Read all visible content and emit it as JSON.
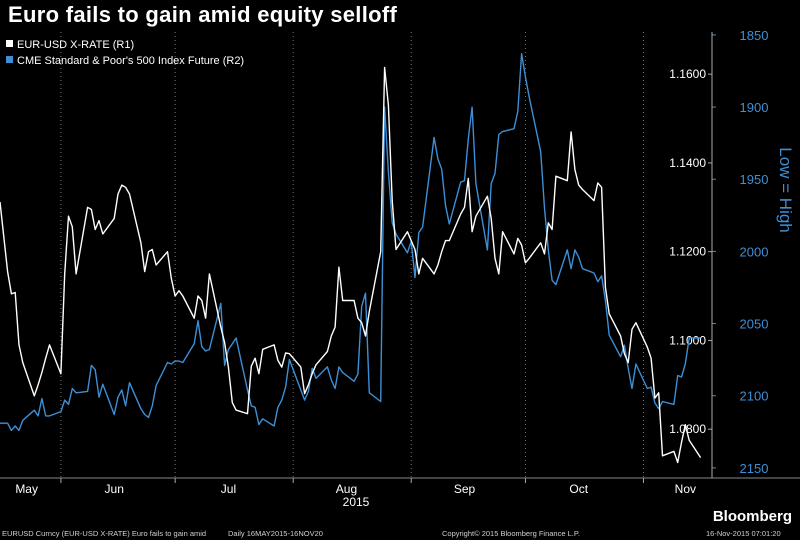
{
  "title": "Euro fails to gain amid equity selloff",
  "brand": "Bloomberg",
  "footer": {
    "left": "EURUSD Curncy (EUR-USD X-RATE) Euro fails to gain amid",
    "range": "Daily 16MAY2015-16NOV20",
    "copyright": "Copyright© 2015 Bloomberg Finance L.P.",
    "timestamp": "16-Nov-2015 07:01:20"
  },
  "colors": {
    "eurusd": "#ffffff",
    "spx": "#3d8fd6",
    "background": "#000000"
  },
  "chart_data": {
    "type": "line",
    "title": "Euro fails to gain amid equity selloff",
    "x": [
      "2015-05-16",
      "2015-05-18",
      "2015-05-19",
      "2015-05-20",
      "2015-05-21",
      "2015-05-22",
      "2015-05-25",
      "2015-05-26",
      "2015-05-27",
      "2015-05-28",
      "2015-05-29",
      "2015-06-01",
      "2015-06-02",
      "2015-06-03",
      "2015-06-04",
      "2015-06-05",
      "2015-06-08",
      "2015-06-09",
      "2015-06-10",
      "2015-06-11",
      "2015-06-12",
      "2015-06-15",
      "2015-06-16",
      "2015-06-17",
      "2015-06-18",
      "2015-06-19",
      "2015-06-22",
      "2015-06-23",
      "2015-06-24",
      "2015-06-25",
      "2015-06-26",
      "2015-06-29",
      "2015-06-30",
      "2015-07-01",
      "2015-07-02",
      "2015-07-03",
      "2015-07-06",
      "2015-07-07",
      "2015-07-08",
      "2015-07-09",
      "2015-07-10",
      "2015-07-13",
      "2015-07-14",
      "2015-07-15",
      "2015-07-16",
      "2015-07-17",
      "2015-07-20",
      "2015-07-21",
      "2015-07-22",
      "2015-07-23",
      "2015-07-24",
      "2015-07-27",
      "2015-07-28",
      "2015-07-29",
      "2015-07-30",
      "2015-07-31",
      "2015-08-03",
      "2015-08-04",
      "2015-08-05",
      "2015-08-06",
      "2015-08-07",
      "2015-08-10",
      "2015-08-11",
      "2015-08-12",
      "2015-08-13",
      "2015-08-14",
      "2015-08-17",
      "2015-08-18",
      "2015-08-19",
      "2015-08-20",
      "2015-08-21",
      "2015-08-24",
      "2015-08-25",
      "2015-08-26",
      "2015-08-27",
      "2015-08-28",
      "2015-08-31",
      "2015-09-01",
      "2015-09-02",
      "2015-09-03",
      "2015-09-04",
      "2015-09-07",
      "2015-09-08",
      "2015-09-09",
      "2015-09-10",
      "2015-09-11",
      "2015-09-14",
      "2015-09-15",
      "2015-09-16",
      "2015-09-17",
      "2015-09-18",
      "2015-09-21",
      "2015-09-22",
      "2015-09-23",
      "2015-09-24",
      "2015-09-25",
      "2015-09-28",
      "2015-09-29",
      "2015-09-30",
      "2015-10-01",
      "2015-10-02",
      "2015-10-05",
      "2015-10-06",
      "2015-10-07",
      "2015-10-08",
      "2015-10-09",
      "2015-10-12",
      "2015-10-13",
      "2015-10-14",
      "2015-10-15",
      "2015-10-16",
      "2015-10-19",
      "2015-10-20",
      "2015-10-21",
      "2015-10-22",
      "2015-10-23",
      "2015-10-26",
      "2015-10-27",
      "2015-10-28",
      "2015-10-29",
      "2015-10-30",
      "2015-11-02",
      "2015-11-03",
      "2015-11-04",
      "2015-11-05",
      "2015-11-06",
      "2015-11-09",
      "2015-11-10",
      "2015-11-11",
      "2015-11-12",
      "2015-11-13",
      "2015-11-16"
    ],
    "series": [
      {
        "name": "EUR-USD X-RATE  (R1)",
        "axis": "left",
        "values": [
          1.1312,
          1.1155,
          1.1105,
          1.1108,
          1.099,
          1.095,
          1.0875,
          1.09,
          1.0928,
          1.096,
          1.099,
          1.0925,
          1.115,
          1.128,
          1.1256,
          1.115,
          1.13,
          1.1295,
          1.125,
          1.127,
          1.124,
          1.1275,
          1.133,
          1.135,
          1.1345,
          1.133,
          1.122,
          1.1155,
          1.12,
          1.1205,
          1.117,
          1.12,
          1.114,
          1.11,
          1.1112,
          1.11,
          1.105,
          1.11,
          1.109,
          1.105,
          1.115,
          1.103,
          1.0995,
          1.094,
          1.086,
          1.0843,
          1.0835,
          1.0942,
          1.096,
          1.0925,
          1.098,
          1.099,
          1.0955,
          1.094,
          1.0972,
          1.097,
          1.094,
          1.088,
          1.09,
          1.0925,
          1.0945,
          1.0975,
          1.101,
          1.103,
          1.1165,
          1.109,
          1.109,
          1.105,
          1.104,
          1.101,
          1.1065,
          1.12,
          1.1615,
          1.153,
          1.1315,
          1.1205,
          1.1245,
          1.1225,
          1.1205,
          1.115,
          1.1185,
          1.115,
          1.117,
          1.12,
          1.1225,
          1.1225,
          1.1285,
          1.13,
          1.1365,
          1.1245,
          1.128,
          1.1325,
          1.1275,
          1.1185,
          1.115,
          1.1245,
          1.1195,
          1.123,
          1.1215,
          1.1175,
          1.1185,
          1.122,
          1.1195,
          1.1265,
          1.125,
          1.137,
          1.136,
          1.147,
          1.1385,
          1.135,
          1.134,
          1.1315,
          1.1355,
          1.1345,
          1.112,
          1.106,
          1.101,
          1.097,
          1.095,
          1.1025,
          1.104,
          1.0985,
          1.096,
          1.087,
          1.0882,
          1.074,
          1.075,
          1.0725,
          1.077,
          1.081,
          1.0775,
          1.0736
        ]
      },
      {
        "name": "CME Standard & Poor's 500 Index Future  (R2)",
        "axis": "right",
        "values": [
          2119,
          2119,
          2124,
          2121,
          2124,
          2117,
          2110,
          2114,
          2102,
          2114,
          2114,
          2111,
          2103,
          2106,
          2095,
          2098,
          2097,
          2079,
          2082,
          2101,
          2092,
          2113,
          2101,
          2096,
          2107,
          2091,
          2109,
          2113,
          2115,
          2107,
          2093,
          2077,
          2078,
          2076,
          2076,
          2077,
          2064,
          2048,
          2066,
          2069,
          2068,
          2036,
          2079,
          2068,
          2064,
          2060,
          2096,
          2107,
          2108,
          2120,
          2116,
          2121,
          2108,
          2103,
          2094,
          2075,
          2096,
          2103,
          2097,
          2081,
          2088,
          2080,
          2089,
          2095,
          2080,
          2084,
          2090,
          2085,
          2038,
          2029,
          2098,
          2104,
          1900,
          1945,
          1980,
          1988,
          2001,
          1993,
          2018,
          1987,
          1983,
          1921,
          1936,
          1943,
          1968,
          1981,
          1952,
          1951,
          1922,
          1900,
          1953,
          1999,
          1953,
          1946,
          1919,
          1917,
          1915,
          1903,
          1863,
          1879,
          1893,
          1931,
          1970,
          1999,
          2020,
          2023,
          1999,
          2012,
          1999,
          2004,
          2012,
          2015,
          2021,
          2017,
          2034,
          2058,
          2073,
          2065,
          2081,
          2095,
          2078,
          2095,
          2094,
          2105,
          2109,
          2104,
          2106,
          2086,
          2087,
          2078,
          2060,
          2060
        ]
      }
    ],
    "axes": {
      "left": {
        "ylim": [
          1.069,
          1.1695
        ],
        "ticks": [
          "1.0800",
          "1.1000",
          "1.1200",
          "1.1400",
          "1.1600"
        ]
      },
      "right": {
        "ylim": [
          2157,
          1848
        ],
        "inverted": true,
        "ticks": [
          "1850",
          "1900",
          "1950",
          "2000",
          "2050",
          "2100",
          "2150"
        ],
        "label": "Low = High"
      }
    },
    "x_ticks": [
      "May",
      "Jun",
      "Jul",
      "Aug",
      "Sep",
      "Oct",
      "Nov"
    ],
    "x_year": "2015",
    "grid": "vertical dotted at month starts",
    "legend": "top-left"
  }
}
